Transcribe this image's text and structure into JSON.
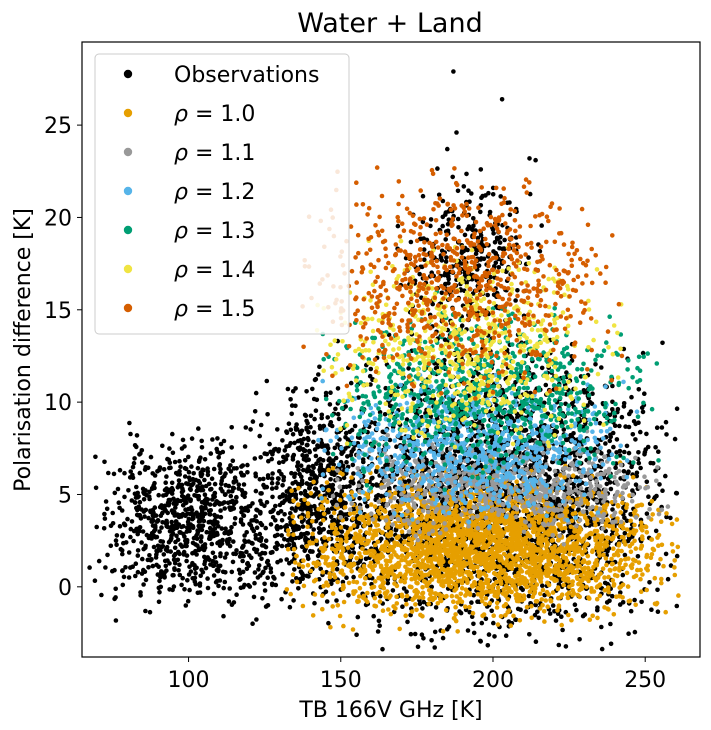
{
  "chart_data": {
    "type": "scatter",
    "title": "Water + Land",
    "xlabel": "TB 166V GHz [K]",
    "ylabel": "Polarisation difference [K]",
    "xlim": [
      65,
      268
    ],
    "ylim": [
      -3.8,
      29.5
    ],
    "x_ticks": [
      100,
      150,
      200,
      250
    ],
    "y_ticks": [
      0,
      5,
      10,
      15,
      20,
      25
    ],
    "grid": false,
    "legend_position": "top-left",
    "series": [
      {
        "name": "Observations",
        "color": "#000000",
        "clusters": [
          {
            "x": [
              70,
              135
            ],
            "y": [
              -1,
              8
            ],
            "n": 900
          },
          {
            "x": [
              120,
              165
            ],
            "y": [
              -1,
              11
            ],
            "n": 700
          },
          {
            "x": [
              150,
              258
            ],
            "y": [
              -2.5,
              13
            ],
            "n": 2600
          },
          {
            "x": [
              170,
              215
            ],
            "y": [
              13,
              22
            ],
            "n": 350
          }
        ],
        "points": [
          {
            "x": 187,
            "y": 27.9
          },
          {
            "x": 203,
            "y": 26.4
          },
          {
            "x": 188,
            "y": 24.6
          },
          {
            "x": 185,
            "y": 23.7
          },
          {
            "x": 196,
            "y": 22.6
          },
          {
            "x": 212,
            "y": 23.2
          },
          {
            "x": 214,
            "y": 23.1
          },
          {
            "x": 185,
            "y": -2.3
          }
        ]
      },
      {
        "name": "ρ = 1.0",
        "color": "#E69F00",
        "clusters": [
          {
            "x": [
              135,
              258
            ],
            "y": [
              -1.5,
              6
            ],
            "n": 2600
          }
        ]
      },
      {
        "name": "ρ = 1.1",
        "color": "#999999",
        "clusters": [
          {
            "x": [
              150,
              255
            ],
            "y": [
              3,
              8
            ],
            "n": 650
          }
        ]
      },
      {
        "name": "ρ = 1.2",
        "color": "#56B4E9",
        "clusters": [
          {
            "x": [
              145,
              245
            ],
            "y": [
              4,
              11
            ],
            "n": 750
          }
        ]
      },
      {
        "name": "ρ = 1.3",
        "color": "#009E73",
        "clusters": [
          {
            "x": [
              145,
              252
            ],
            "y": [
              6,
              15
            ],
            "n": 750
          }
        ]
      },
      {
        "name": "ρ = 1.4",
        "color": "#F0E442",
        "clusters": [
          {
            "x": [
              145,
              240
            ],
            "y": [
              8,
              18
            ],
            "n": 600
          }
        ]
      },
      {
        "name": "ρ = 1.5",
        "color": "#D55E00",
        "clusters": [
          {
            "x": [
              140,
              240
            ],
            "y": [
              11,
              22
            ],
            "n": 750
          }
        ]
      }
    ]
  }
}
